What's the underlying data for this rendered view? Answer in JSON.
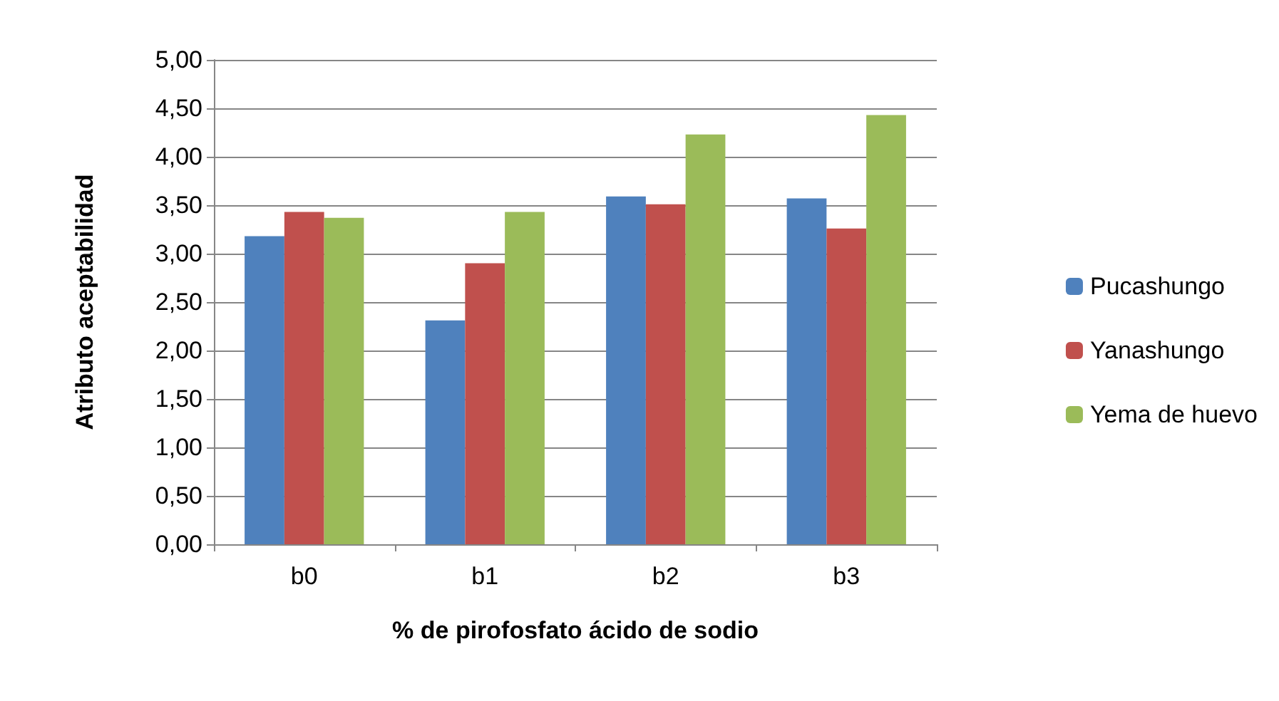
{
  "chart_data": {
    "type": "bar",
    "xlabel": "% de pirofosfato ácido de sodio",
    "ylabel": "Atributo aceptabilidad",
    "categories": [
      "b0",
      "b1",
      "b2",
      "b3"
    ],
    "series": [
      {
        "name": "Pucashungo",
        "color": "#4f81bd",
        "values": [
          3.18,
          2.31,
          3.59,
          3.57
        ]
      },
      {
        "name": "Yanashungo",
        "color": "#c0504d",
        "values": [
          3.43,
          2.9,
          3.51,
          3.26
        ]
      },
      {
        "name": "Yema de huevo",
        "color": "#9bbb59",
        "values": [
          3.37,
          3.43,
          4.23,
          4.43
        ]
      }
    ],
    "ylim": [
      0,
      5
    ],
    "yticks": [
      {
        "value": 0,
        "label": "0,00"
      },
      {
        "value": 0.5,
        "label": "0,50"
      },
      {
        "value": 1,
        "label": "1,00"
      },
      {
        "value": 1.5,
        "label": "1,50"
      },
      {
        "value": 2,
        "label": "2,00"
      },
      {
        "value": 2.5,
        "label": "2,50"
      },
      {
        "value": 3,
        "label": "3,00"
      },
      {
        "value": 3.5,
        "label": "3,50"
      },
      {
        "value": 4,
        "label": "4,00"
      },
      {
        "value": 4.5,
        "label": "4,50"
      },
      {
        "value": 5,
        "label": "5,00"
      }
    ],
    "grid": "y",
    "legend": "right"
  }
}
